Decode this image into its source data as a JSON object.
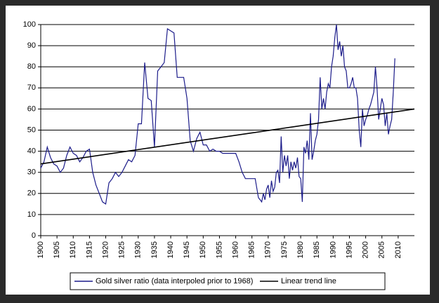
{
  "chart_data": {
    "type": "line",
    "series": [
      {
        "name": "Gold silver ratio (data interpoled prior to 1968)",
        "color": "#1c1c8a",
        "x": [
          1900,
          1901,
          1902,
          1903,
          1904,
          1905,
          1906,
          1907,
          1908,
          1909,
          1910,
          1911,
          1912,
          1913,
          1914,
          1915,
          1916,
          1917,
          1918,
          1919,
          1920,
          1921,
          1922,
          1923,
          1924,
          1925,
          1926,
          1927,
          1928,
          1929,
          1930,
          1931,
          1932,
          1933,
          1934,
          1935,
          1936,
          1937,
          1938,
          1939,
          1940,
          1941,
          1942,
          1943,
          1944,
          1945,
          1946,
          1947,
          1948,
          1949,
          1950,
          1951,
          1952,
          1953,
          1954,
          1955,
          1956,
          1957,
          1958,
          1959,
          1960,
          1961,
          1962,
          1963,
          1964,
          1965,
          1966,
          1967,
          1968,
          1968.5,
          1969,
          1969.5,
          1970,
          1970.5,
          1971,
          1971.5,
          1972,
          1972.5,
          1973,
          1973.5,
          1974,
          1974.5,
          1975,
          1975.5,
          1976,
          1976.5,
          1977,
          1977.5,
          1978,
          1978.5,
          1979,
          1979.5,
          1980,
          1980.5,
          1981,
          1981.5,
          1982,
          1982.5,
          1983,
          1983.5,
          1984,
          1984.5,
          1985,
          1985.5,
          1986,
          1986.5,
          1987,
          1987.5,
          1988,
          1988.5,
          1989,
          1989.5,
          1990,
          1990.5,
          1991,
          1991.5,
          1992,
          1992.5,
          1993,
          1993.5,
          1994,
          1994.5,
          1995,
          1995.5,
          1996,
          1996.5,
          1997,
          1997.5,
          1998,
          1998.5,
          1999,
          1999.5,
          2000,
          2000.5,
          2001,
          2001.5,
          2002,
          2002.5,
          2003,
          2003.5,
          2004,
          2004.5,
          2005,
          2005.5,
          2006,
          2006.5,
          2007,
          2007.5,
          2008,
          2008.5,
          2009
        ],
        "values": [
          32,
          35,
          42,
          37,
          34,
          33,
          30,
          32,
          38,
          42,
          39,
          38,
          35,
          37,
          40,
          41,
          30,
          24,
          20,
          16,
          15,
          25,
          27,
          30,
          28,
          30,
          33,
          36,
          35,
          38,
          53,
          53,
          82,
          65,
          64,
          42,
          78,
          80,
          82,
          98,
          97,
          96,
          75,
          75,
          75,
          65,
          45,
          40,
          46,
          49,
          43,
          43,
          40,
          41,
          40,
          40,
          39,
          39,
          39,
          39,
          39,
          35,
          30,
          27,
          27,
          27,
          27,
          18,
          16,
          20,
          17,
          22,
          24,
          18,
          26,
          21,
          23,
          30,
          31,
          25,
          47,
          30,
          38,
          33,
          38,
          27,
          35,
          31,
          35,
          32,
          37,
          28,
          27,
          16,
          42,
          39,
          45,
          36,
          58,
          36,
          40,
          45,
          48,
          55,
          75,
          60,
          65,
          60,
          68,
          72,
          70,
          80,
          85,
          94,
          100,
          88,
          92,
          85,
          90,
          80,
          78,
          70,
          70,
          72,
          75,
          70,
          70,
          65,
          50,
          42,
          60,
          52,
          55,
          57,
          60,
          62,
          65,
          68,
          80,
          70,
          55,
          60,
          65,
          62,
          52,
          58,
          48,
          52,
          55,
          68,
          84
        ]
      },
      {
        "name": "Linear trend line",
        "color": "#000000",
        "x": [
          1900,
          2015
        ],
        "values": [
          34,
          60
        ]
      }
    ],
    "xlim": [
      1900,
      2015
    ],
    "xticks": [
      1900,
      1905,
      1910,
      1915,
      1920,
      1925,
      1930,
      1935,
      1940,
      1945,
      1950,
      1955,
      1960,
      1965,
      1970,
      1975,
      1980,
      1985,
      1990,
      1995,
      2000,
      2005,
      2010
    ],
    "ylim": [
      0,
      100
    ],
    "yticks": [
      0,
      10,
      20,
      30,
      40,
      50,
      60,
      70,
      80,
      90,
      100
    ],
    "grid": true
  }
}
